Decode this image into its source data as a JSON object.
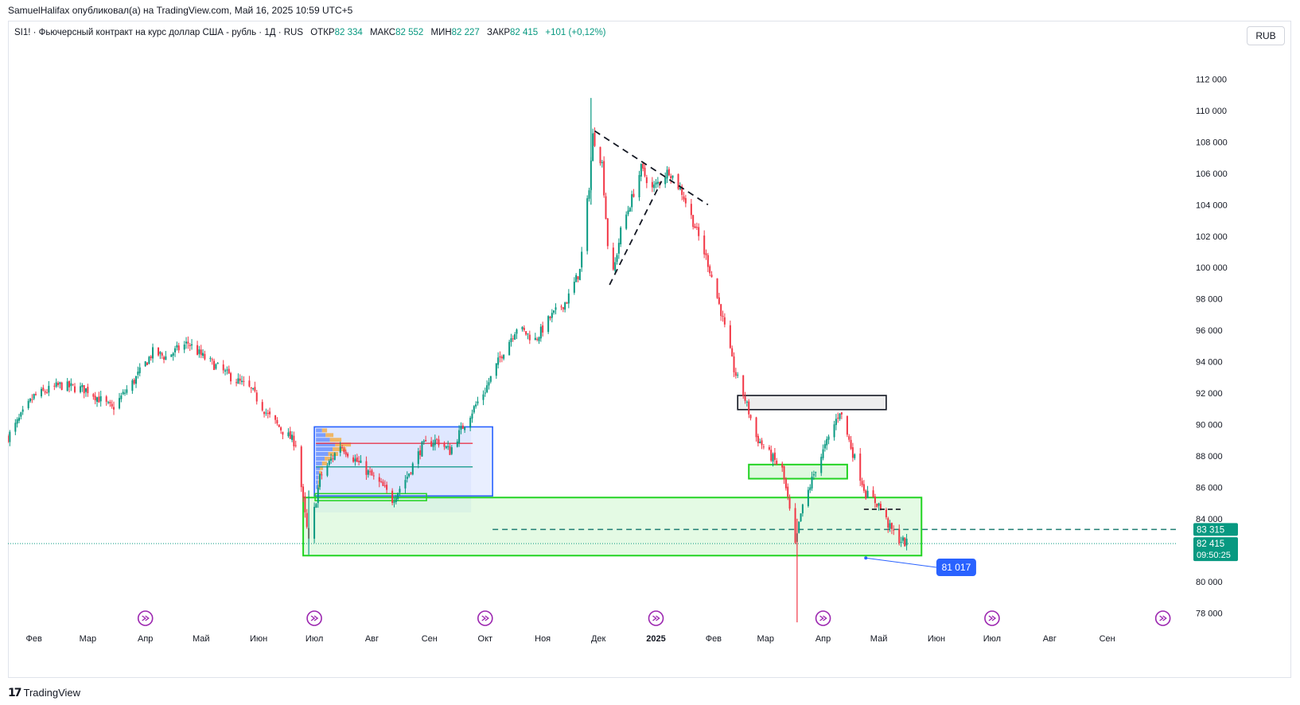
{
  "publisher": "SamuelHalifax опубликовал(а) на TradingView.com, Май 16, 2025 10:59 UTC+5",
  "symbol_bar": {
    "title": "SI1! · Фьючерсный контракт на курс доллар США - рубль · 1Д · RUS",
    "open_label": "ОТКР",
    "open": "82 334",
    "high_label": "МАКС",
    "high": "82 552",
    "low_label": "МИН",
    "low": "82 227",
    "close_label": "ЗАКР",
    "close": "82 415",
    "change": "+101 (+0,12%)"
  },
  "currency": "RUB",
  "footer": {
    "brand": "TradingView"
  },
  "colors": {
    "up": "#089981",
    "down": "#f23645",
    "accent_blue": "#2962ff",
    "zone_green": "#22d322"
  },
  "chart_data": {
    "type": "candlestick",
    "title": "SI1! · Фьючерсный контракт на курс доллар США - рубль · 1Д · RUS",
    "y_ticks": [
      78000,
      80000,
      82000,
      84000,
      86000,
      88000,
      90000,
      92000,
      94000,
      96000,
      98000,
      100000,
      102000,
      104000,
      106000,
      108000,
      110000,
      112000
    ],
    "y_tick_labels": [
      "78 000",
      "80 000",
      "82 000",
      "84 000",
      "86 000",
      "88 000",
      "90 000",
      "92 000",
      "94 000",
      "96 000",
      "98 000",
      "100 000",
      "102 000",
      "104 000",
      "106 000",
      "108 000",
      "110 000",
      "112 000"
    ],
    "ylim": [
      77000,
      114000
    ],
    "x_range": [
      "2024-01-18",
      "2025-10-08"
    ],
    "x_ticks": [
      {
        "date": "2024-02-01",
        "label": "Фев"
      },
      {
        "date": "2024-03-01",
        "label": "Мар"
      },
      {
        "date": "2024-04-01",
        "label": "Апр"
      },
      {
        "date": "2024-05-01",
        "label": "Май"
      },
      {
        "date": "2024-06-01",
        "label": "Июн"
      },
      {
        "date": "2024-07-01",
        "label": "Июл"
      },
      {
        "date": "2024-08-01",
        "label": "Авг"
      },
      {
        "date": "2024-09-01",
        "label": "Сен"
      },
      {
        "date": "2024-10-01",
        "label": "Окт"
      },
      {
        "date": "2024-11-01",
        "label": "Ноя"
      },
      {
        "date": "2024-12-01",
        "label": "Дек"
      },
      {
        "date": "2025-01-01",
        "label": "2025"
      },
      {
        "date": "2025-02-01",
        "label": "Фев"
      },
      {
        "date": "2025-03-01",
        "label": "Мар"
      },
      {
        "date": "2025-04-01",
        "label": "Апр"
      },
      {
        "date": "2025-05-01",
        "label": "Май"
      },
      {
        "date": "2025-06-01",
        "label": "Июн"
      },
      {
        "date": "2025-07-01",
        "label": "Июл"
      },
      {
        "date": "2025-08-01",
        "label": "Авг"
      },
      {
        "date": "2025-09-01",
        "label": "Сен"
      }
    ],
    "price_path": [
      [
        "2024-01-18",
        89200
      ],
      [
        "2024-02-01",
        91800
      ],
      [
        "2024-02-15",
        92500
      ],
      [
        "2024-03-01",
        92200
      ],
      [
        "2024-03-14",
        91000
      ],
      [
        "2024-03-26",
        92800
      ],
      [
        "2024-04-05",
        94600
      ],
      [
        "2024-04-12",
        94300
      ],
      [
        "2024-04-24",
        95200
      ],
      [
        "2024-05-01",
        94400
      ],
      [
        "2024-05-15",
        93200
      ],
      [
        "2024-05-28",
        92200
      ],
      [
        "2024-06-06",
        90600
      ],
      [
        "2024-06-14",
        89600
      ],
      [
        "2024-06-21",
        88800
      ],
      [
        "2024-06-26",
        84200
      ],
      [
        "2024-06-28",
        82500
      ],
      [
        "2024-07-04",
        86600
      ],
      [
        "2024-07-15",
        88700
      ],
      [
        "2024-07-26",
        87400
      ],
      [
        "2024-08-07",
        86000
      ],
      [
        "2024-08-12",
        85200
      ],
      [
        "2024-08-20",
        86700
      ],
      [
        "2024-08-28",
        88600
      ],
      [
        "2024-09-05",
        89000
      ],
      [
        "2024-09-12",
        88300
      ],
      [
        "2024-09-20",
        90100
      ],
      [
        "2024-10-01",
        92200
      ],
      [
        "2024-10-10",
        94500
      ],
      [
        "2024-10-18",
        96200
      ],
      [
        "2024-10-28",
        95400
      ],
      [
        "2024-11-05",
        96800
      ],
      [
        "2024-11-14",
        97900
      ],
      [
        "2024-11-21",
        99800
      ],
      [
        "2024-11-26",
        105200
      ],
      [
        "2024-11-28",
        108400
      ],
      [
        "2024-12-03",
        106600
      ],
      [
        "2024-12-06",
        101500
      ],
      [
        "2024-12-09",
        99600
      ],
      [
        "2024-12-13",
        102300
      ],
      [
        "2024-12-19",
        104400
      ],
      [
        "2024-12-24",
        106300
      ],
      [
        "2024-12-30",
        105000
      ],
      [
        "2025-01-08",
        106200
      ],
      [
        "2025-01-15",
        104800
      ],
      [
        "2025-01-22",
        102600
      ],
      [
        "2025-01-29",
        100300
      ],
      [
        "2025-02-05",
        97200
      ],
      [
        "2025-02-12",
        93500
      ],
      [
        "2025-02-18",
        91600
      ],
      [
        "2025-02-24",
        89200
      ],
      [
        "2025-03-03",
        88100
      ],
      [
        "2025-03-10",
        87100
      ],
      [
        "2025-03-13",
        85200
      ],
      [
        "2025-03-17",
        82200
      ],
      [
        "2025-03-20",
        84300
      ],
      [
        "2025-03-28",
        87200
      ],
      [
        "2025-04-04",
        89100
      ],
      [
        "2025-04-10",
        90900
      ],
      [
        "2025-04-17",
        88200
      ],
      [
        "2025-04-24",
        85600
      ],
      [
        "2025-05-01",
        84900
      ],
      [
        "2025-05-07",
        83400
      ],
      [
        "2025-05-12",
        82700
      ],
      [
        "2025-05-16",
        82415
      ]
    ],
    "last_price": {
      "value": 82415,
      "label": "82 415",
      "countdown": "09:50:25"
    },
    "level_price": {
      "value": 83315,
      "label": "83 315"
    },
    "callout_price": {
      "value": 81017,
      "label": "81 017"
    },
    "annotations": {
      "demand_zone_big": {
        "from": "2024-06-25",
        "to": "2025-05-24",
        "low": 81650,
        "high": 85350
      },
      "demand_zone_small": {
        "from": "2025-02-20",
        "to": "2025-04-14",
        "low": 86550,
        "high": 87450
      },
      "supply_zone": {
        "from": "2025-02-14",
        "to": "2025-05-05",
        "low": 90950,
        "high": 91850
      },
      "range_box": {
        "from": "2024-07-01",
        "to": "2024-10-05",
        "low": 85450,
        "high": 89850
      },
      "dashed_level": {
        "from": "2024-10-05",
        "to": "2025-10-08",
        "price": 83315
      },
      "triangle_upper": [
        [
          "2024-11-29",
          108700
        ],
        [
          "2025-01-29",
          104000
        ]
      ],
      "triangle_lower": [
        [
          "2024-12-07",
          98900
        ],
        [
          "2025-01-04",
          105500
        ]
      ],
      "short_level": {
        "from": "2025-04-23",
        "to": "2025-05-14",
        "price": 84600
      },
      "callout_line": [
        [
          "2025-04-24",
          81500
        ],
        [
          "2025-06-01",
          80900
        ]
      ]
    }
  }
}
